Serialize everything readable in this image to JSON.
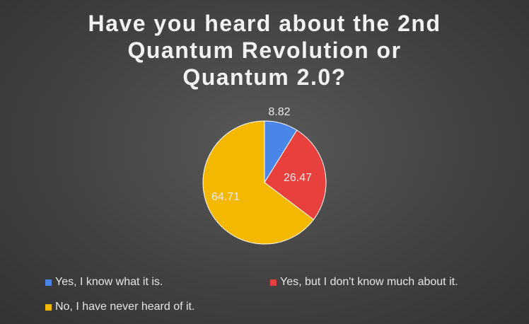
{
  "chart_data": {
    "type": "pie",
    "title_lines": [
      "Have you heard about the 2nd",
      "Quantum Revolution or",
      "Quantum 2.0?"
    ],
    "categories": [
      "Yes, I know what it is.",
      "Yes, but I don't know much about it.",
      "No, I have never heard of it."
    ],
    "values": [
      8.82,
      26.47,
      64.71
    ],
    "data_labels": [
      "8.82",
      "26.47",
      "64.71"
    ],
    "colors": [
      "#4a86e8",
      "#e8403c",
      "#f5b800"
    ],
    "legend_position": "bottom"
  }
}
